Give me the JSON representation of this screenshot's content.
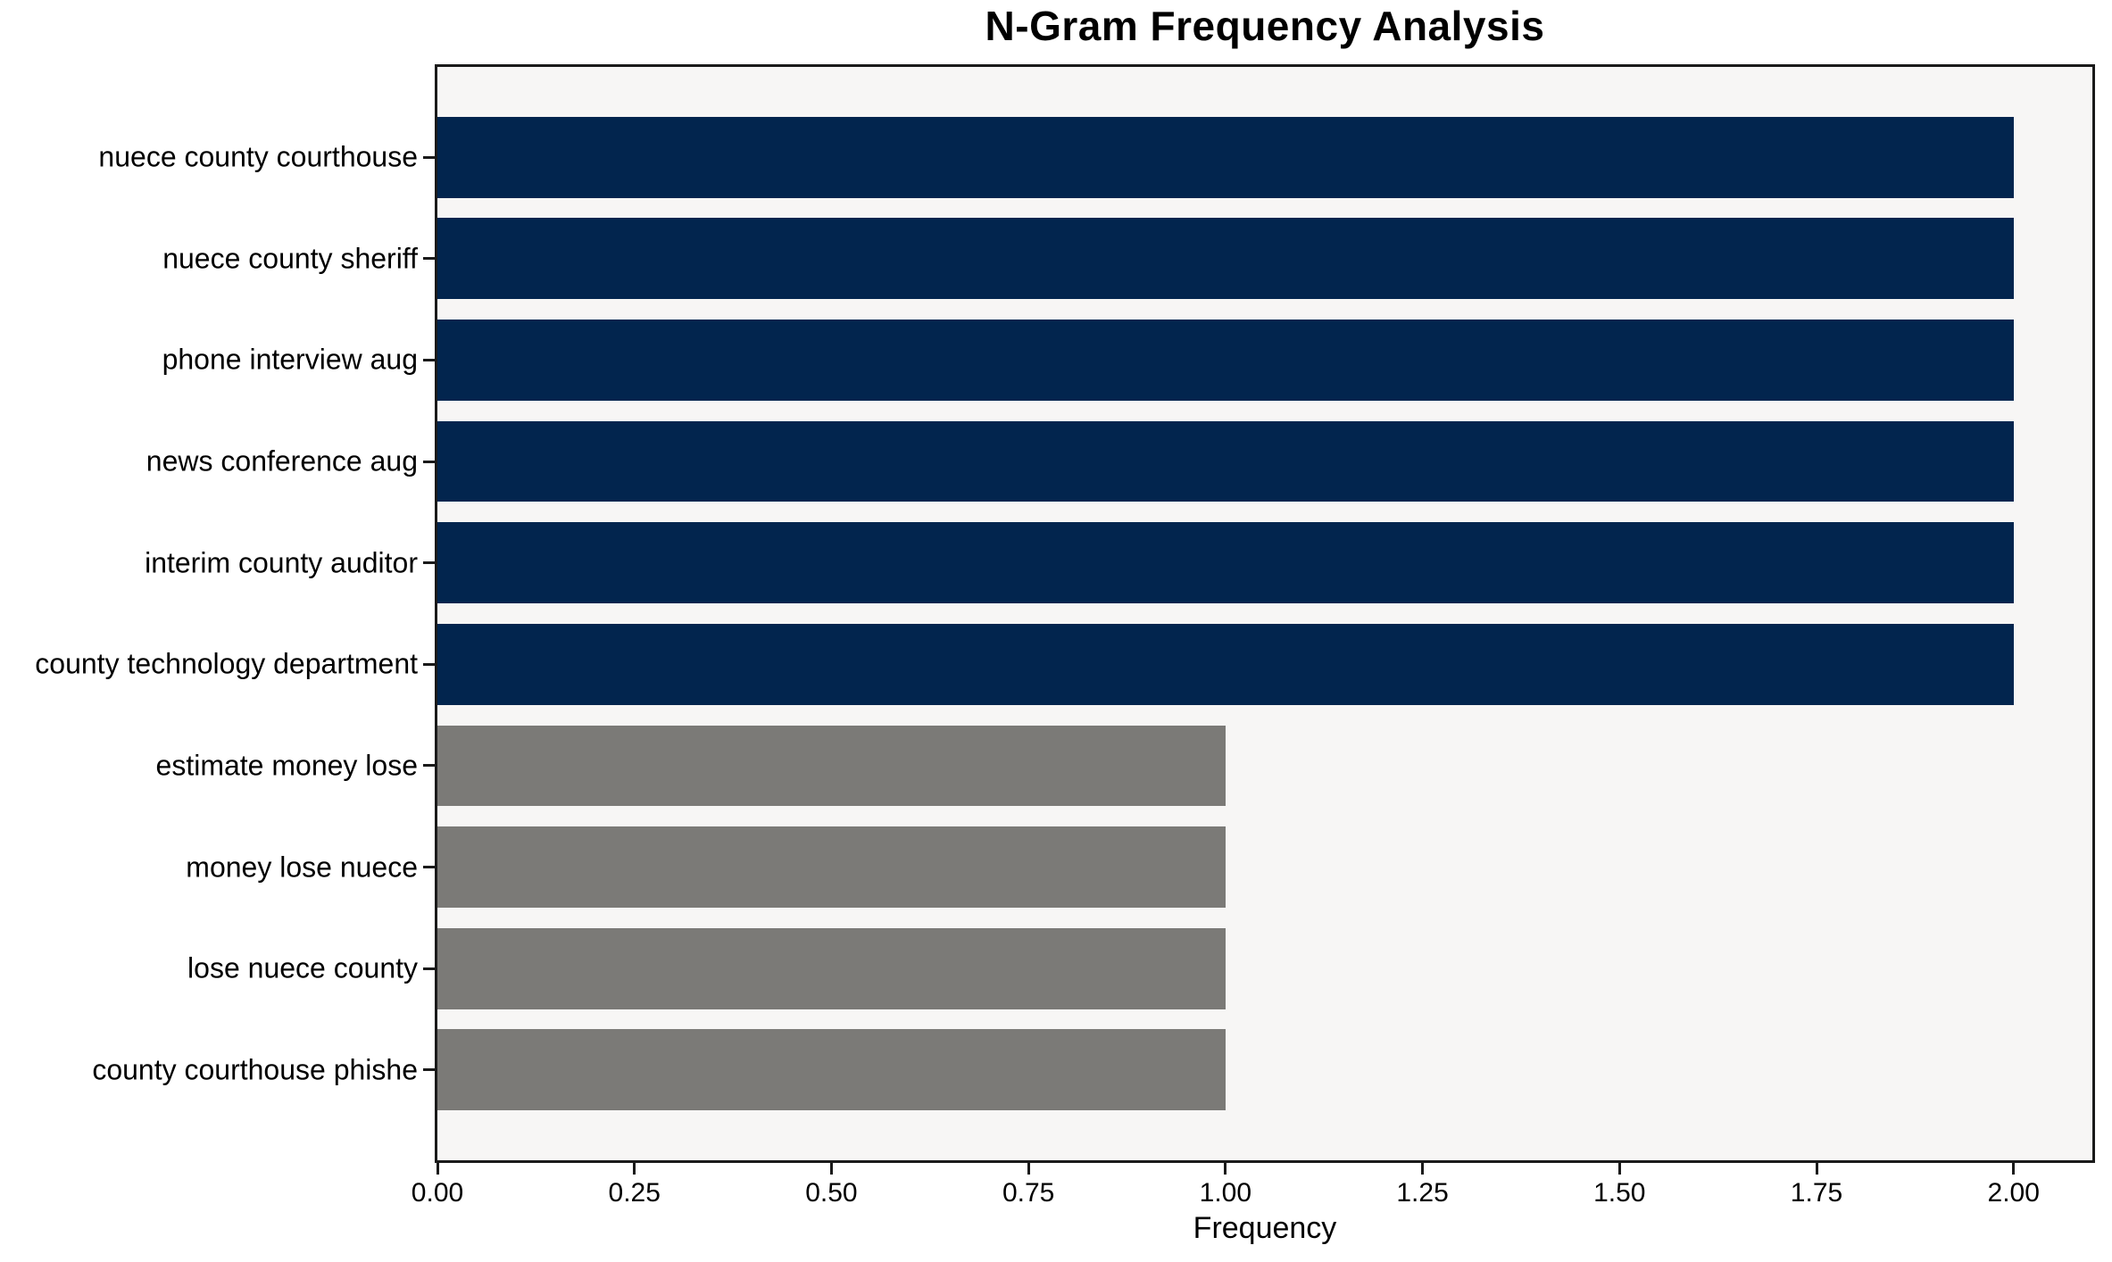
{
  "chart_data": {
    "type": "bar",
    "orientation": "horizontal",
    "title": "N-Gram Frequency Analysis",
    "xlabel": "Frequency",
    "ylabel": "",
    "categories": [
      "nuece county courthouse",
      "nuece county sheriff",
      "phone interview aug",
      "news conference aug",
      "interim county auditor",
      "county technology department",
      "estimate money lose",
      "money lose nuece",
      "lose nuece county",
      "county courthouse phishe"
    ],
    "values": [
      2,
      2,
      2,
      2,
      2,
      2,
      1,
      1,
      1,
      1
    ],
    "bar_colors": [
      "#02254e",
      "#02254e",
      "#02254e",
      "#02254e",
      "#02254e",
      "#02254e",
      "#7b7a77",
      "#7b7a77",
      "#7b7a77",
      "#7b7a77"
    ],
    "xlim": [
      0,
      2.1
    ],
    "x_ticks": [
      "0.00",
      "0.25",
      "0.50",
      "0.75",
      "1.00",
      "1.25",
      "1.50",
      "1.75",
      "2.00"
    ],
    "x_tick_values": [
      0,
      0.25,
      0.5,
      0.75,
      1.0,
      1.25,
      1.5,
      1.75,
      2.0
    ],
    "grid": false,
    "legend": "none",
    "colors": {
      "navy": "#02254e",
      "gray": "#7b7a77",
      "plot_background": "#f7f6f5",
      "spine": "#1a1a1a",
      "figure_background": "#ffffff"
    }
  }
}
